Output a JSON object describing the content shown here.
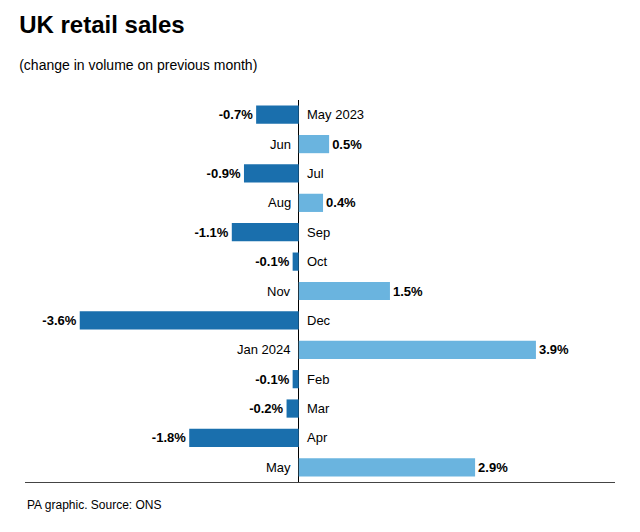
{
  "chart_data": {
    "type": "bar",
    "orientation": "horizontal",
    "title": "UK retail sales",
    "subtitle": "(change in volume on previous month)",
    "source": "PA graphic. Source: ONS",
    "categories": [
      "May 2023",
      "Jun",
      "Jul",
      "Aug",
      "Sep",
      "Oct",
      "Nov",
      "Dec",
      "Jan 2024",
      "Feb",
      "Mar",
      "Apr",
      "May"
    ],
    "values": [
      -0.7,
      0.5,
      -0.9,
      0.4,
      -1.1,
      -0.1,
      1.5,
      -3.6,
      3.9,
      -0.1,
      -0.2,
      -1.8,
      2.9
    ],
    "value_labels": [
      "-0.7%",
      "0.5%",
      "-0.9%",
      "0.4%",
      "-1.1%",
      "-0.1%",
      "1.5%",
      "-3.6%",
      "3.9%",
      "-0.1%",
      "-0.2%",
      "-1.8%",
      "2.9%"
    ],
    "colors": [
      "#1a6fad",
      "#6ab4df",
      "#1a6fad",
      "#6ab4df",
      "#1a6fad",
      "#1a6fad",
      "#6ab4df",
      "#1a6fad",
      "#6ab4df",
      "#1a6fad",
      "#1a6fad",
      "#1a6fad",
      "#6ab4df"
    ],
    "xlim": [
      -4.5,
      5.2
    ],
    "xticks": [],
    "grid": false,
    "data_labels": true,
    "tick_labels": false
  }
}
